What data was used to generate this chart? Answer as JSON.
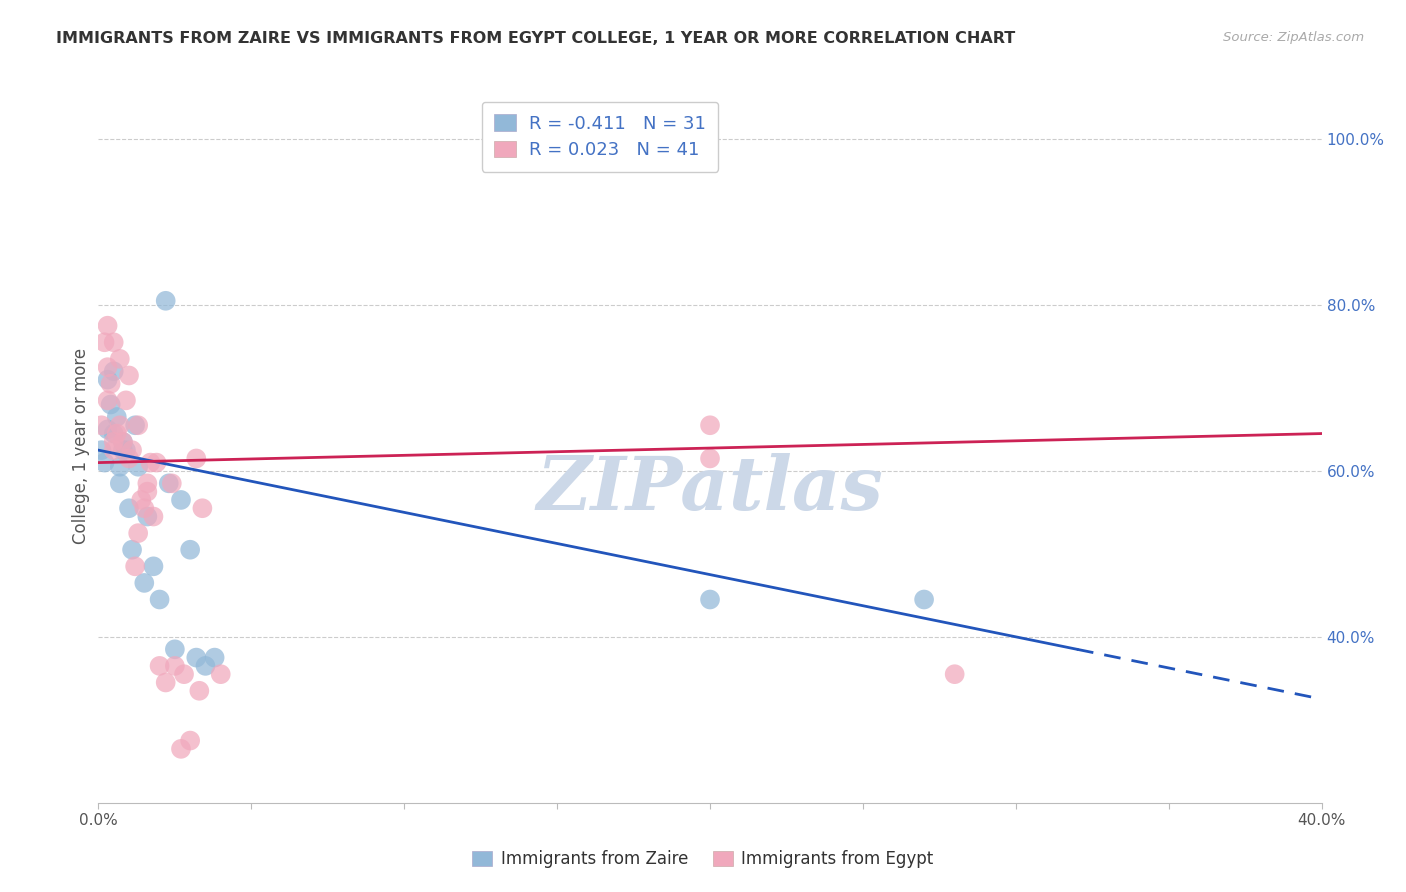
{
  "title": "IMMIGRANTS FROM ZAIRE VS IMMIGRANTS FROM EGYPT COLLEGE, 1 YEAR OR MORE CORRELATION CHART",
  "source": "Source: ZipAtlas.com",
  "ylabel": "College, 1 year or more",
  "legend_label_zaire": "Immigrants from Zaire",
  "legend_label_egypt": "Immigrants from Egypt",
  "r_zaire": -0.411,
  "n_zaire": 31,
  "r_egypt": 0.023,
  "n_egypt": 41,
  "xlim": [
    0.0,
    0.4
  ],
  "ylim": [
    0.2,
    1.06
  ],
  "color_zaire": "#92b8d8",
  "color_egypt": "#f0a8bc",
  "line_color_zaire": "#2255bb",
  "line_color_egypt": "#cc2255",
  "watermark": "ZIPatlas",
  "watermark_color": "#ccd8e8",
  "background_color": "#ffffff",
  "grid_color": "#cccccc",
  "right_label_color": "#4472c4",
  "right_yticks": [
    0.4,
    0.6,
    0.8,
    1.0
  ],
  "right_yticklabels": [
    "40.0%",
    "60.0%",
    "80.0%",
    "100.0%"
  ],
  "zaire_x": [
    0.001,
    0.002,
    0.003,
    0.003,
    0.004,
    0.005,
    0.005,
    0.006,
    0.007,
    0.007,
    0.008,
    0.008,
    0.009,
    0.01,
    0.011,
    0.012,
    0.013,
    0.015,
    0.016,
    0.018,
    0.02,
    0.022,
    0.023,
    0.025,
    0.027,
    0.03,
    0.032,
    0.035,
    0.038,
    0.2,
    0.27
  ],
  "zaire_y": [
    0.625,
    0.61,
    0.71,
    0.65,
    0.68,
    0.72,
    0.645,
    0.665,
    0.585,
    0.605,
    0.635,
    0.625,
    0.625,
    0.555,
    0.505,
    0.655,
    0.605,
    0.465,
    0.545,
    0.485,
    0.445,
    0.805,
    0.585,
    0.385,
    0.565,
    0.505,
    0.375,
    0.365,
    0.375,
    0.445,
    0.445
  ],
  "egypt_x": [
    0.001,
    0.002,
    0.003,
    0.003,
    0.004,
    0.005,
    0.005,
    0.006,
    0.007,
    0.008,
    0.009,
    0.01,
    0.011,
    0.012,
    0.013,
    0.014,
    0.015,
    0.016,
    0.017,
    0.018,
    0.02,
    0.022,
    0.025,
    0.027,
    0.03,
    0.032,
    0.034,
    0.04,
    0.2,
    0.28,
    0.003,
    0.005,
    0.007,
    0.01,
    0.013,
    0.016,
    0.019,
    0.024,
    0.028,
    0.033,
    0.2
  ],
  "egypt_y": [
    0.655,
    0.755,
    0.725,
    0.685,
    0.705,
    0.635,
    0.625,
    0.645,
    0.655,
    0.635,
    0.685,
    0.615,
    0.625,
    0.485,
    0.525,
    0.565,
    0.555,
    0.585,
    0.61,
    0.545,
    0.365,
    0.345,
    0.365,
    0.265,
    0.275,
    0.615,
    0.555,
    0.355,
    0.615,
    0.355,
    0.775,
    0.755,
    0.735,
    0.715,
    0.655,
    0.575,
    0.61,
    0.585,
    0.355,
    0.335,
    0.655
  ],
  "line_zaire_x0": 0.0,
  "line_zaire_y0": 0.625,
  "line_zaire_x1": 0.4,
  "line_zaire_y1": 0.325,
  "line_egypt_x0": 0.0,
  "line_egypt_y0": 0.61,
  "line_egypt_x1": 0.4,
  "line_egypt_y1": 0.645,
  "line_zaire_solid_end": 0.32
}
